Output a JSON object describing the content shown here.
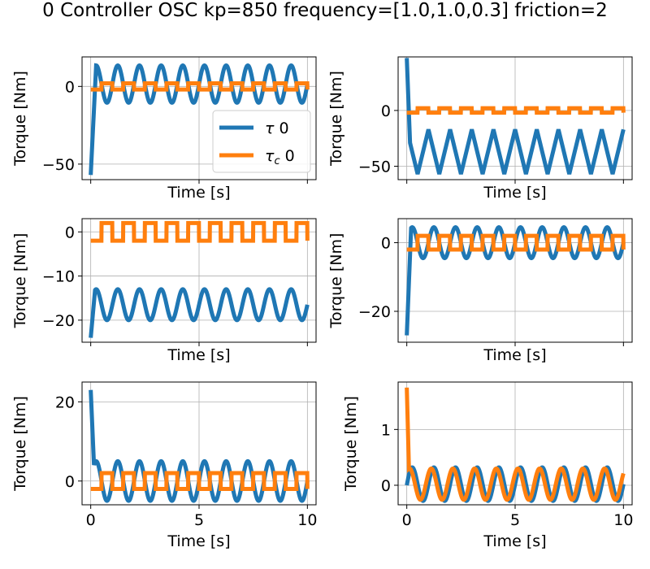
{
  "title": "0 Controller OSC kp=850 frequency=[1.0,1.0,0.3] friction=2",
  "colors": {
    "tau": "#1f77b4",
    "tau_c": "#ff7f0e",
    "grid": "#b0b0b0"
  },
  "chart_data": [
    {
      "type": "line",
      "xlabel": "Time [s]",
      "ylabel": "Torque [Nm]",
      "xlim": [
        -0.4,
        10.4
      ],
      "ylim": [
        -60,
        19
      ],
      "yticks": [
        -50,
        0
      ],
      "ytick_labels": [
        "−50",
        "0"
      ],
      "xticks": [
        0,
        5,
        10
      ],
      "xtick_labels": [
        "",
        "",
        ""
      ],
      "grid": true,
      "legend": "bottom-right",
      "series": [
        {
          "name": "τ 0",
          "key": "tau",
          "start": -57,
          "settle": 0.25,
          "mean": 1.5,
          "amp": 12,
          "freq": 1.0,
          "shape": "sine"
        },
        {
          "name": "τc 0",
          "key": "tau_c",
          "mean": 0,
          "amp": 2,
          "freq": 1.0,
          "shape": "square"
        }
      ]
    },
    {
      "type": "line",
      "xlabel": "Time [s]",
      "ylabel": "Torque [Nm]",
      "xlim": [
        -0.4,
        10.4
      ],
      "ylim": [
        -62,
        48
      ],
      "yticks": [
        -50,
        0
      ],
      "ytick_labels": [
        "−50",
        "0"
      ],
      "xticks": [
        0,
        5,
        10
      ],
      "xtick_labels": [
        "",
        "",
        ""
      ],
      "grid": true,
      "series": [
        {
          "name": "τ 0",
          "key": "tau",
          "start": 47,
          "settle": 0.15,
          "mean": -37,
          "amp": 20,
          "freq": 1.0,
          "shape": "triangle"
        },
        {
          "name": "τc 0",
          "key": "tau_c",
          "mean": 0,
          "amp": 2,
          "freq": 1.0,
          "shape": "square"
        }
      ]
    },
    {
      "type": "line",
      "xlabel": "Time [s]",
      "ylabel": "Torque [Nm]",
      "xlim": [
        -0.4,
        10.4
      ],
      "ylim": [
        -25,
        3
      ],
      "yticks": [
        -20,
        -10,
        0
      ],
      "ytick_labels": [
        "−20",
        "−10",
        "0"
      ],
      "xticks": [
        0,
        5,
        10
      ],
      "xtick_labels": [
        "",
        "",
        ""
      ],
      "grid": true,
      "series": [
        {
          "name": "τ 0",
          "key": "tau",
          "start": -24,
          "settle": 0.2,
          "mean": -16.5,
          "amp": 3.5,
          "freq": 1.0,
          "shape": "sine"
        },
        {
          "name": "τc 0",
          "key": "tau_c",
          "mean": 0,
          "amp": 2,
          "freq": 1.0,
          "shape": "square"
        }
      ]
    },
    {
      "type": "line",
      "xlabel": "Time [s]",
      "ylabel": "Torque [Nm]",
      "xlim": [
        -0.4,
        10.4
      ],
      "ylim": [
        -29,
        7
      ],
      "yticks": [
        -20,
        0
      ],
      "ytick_labels": [
        "−20",
        "0"
      ],
      "xticks": [
        0,
        5,
        10
      ],
      "xtick_labels": [
        "",
        "",
        ""
      ],
      "grid": true,
      "series": [
        {
          "name": "τ 0",
          "key": "tau",
          "start": -27,
          "settle": 0.2,
          "mean": 0,
          "amp": 4.5,
          "freq": 1.0,
          "shape": "sine"
        },
        {
          "name": "τc 0",
          "key": "tau_c",
          "mean": 0,
          "amp": 2,
          "freq": 1.0,
          "shape": "square"
        }
      ]
    },
    {
      "type": "line",
      "xlabel": "Time [s]",
      "ylabel": "Torque [Nm]",
      "xlim": [
        -0.4,
        10.4
      ],
      "ylim": [
        -6,
        25
      ],
      "yticks": [
        0,
        20
      ],
      "ytick_labels": [
        "0",
        "20"
      ],
      "xticks": [
        0,
        5,
        10
      ],
      "xtick_labels": [
        "0",
        "5",
        "10"
      ],
      "grid": true,
      "series": [
        {
          "name": "τ 0",
          "key": "tau",
          "start": 23,
          "settle": 0.15,
          "mean": 0,
          "amp": 5,
          "freq": 1.0,
          "shape": "sine"
        },
        {
          "name": "τc 0",
          "key": "tau_c",
          "mean": 0,
          "amp": 2,
          "freq": 1.0,
          "shape": "square"
        }
      ]
    },
    {
      "type": "line",
      "xlabel": "Time [s]",
      "ylabel": "Torque [Nm]",
      "xlim": [
        -0.4,
        10.4
      ],
      "ylim": [
        -0.35,
        1.85
      ],
      "yticks": [
        0,
        1
      ],
      "ytick_labels": [
        "0",
        "1"
      ],
      "xticks": [
        0,
        5,
        10
      ],
      "xtick_labels": [
        "0",
        "5",
        "10"
      ],
      "grid": true,
      "series": [
        {
          "name": "τ 0",
          "key": "tau",
          "start": 0,
          "settle": 0.1,
          "mean": 0.02,
          "amp": 0.3,
          "freq": 1.0,
          "shape": "sine",
          "phase": 0.0
        },
        {
          "name": "τc 0",
          "key": "tau_c",
          "start": 1.75,
          "settle": 0.1,
          "mean": 0.02,
          "amp": 0.28,
          "freq": 1.0,
          "shape": "sine",
          "phase": 0.12
        }
      ]
    }
  ]
}
